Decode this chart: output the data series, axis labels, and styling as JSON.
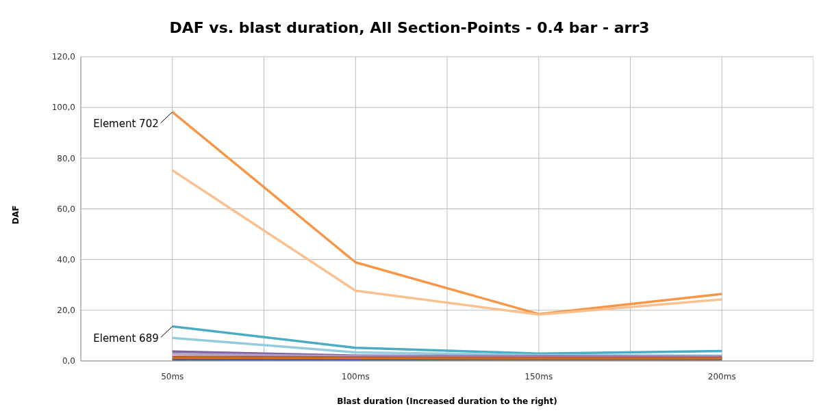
{
  "chart_data": {
    "type": "line",
    "title": "DAF vs. blast duration, All Section-Points - 0.4 bar - arr3",
    "xlabel": "Blast duration (Increased duration to the right)",
    "ylabel": "DAF",
    "categories": [
      "50ms",
      "100ms",
      "150ms",
      "200ms"
    ],
    "series": [
      {
        "color": "#f79646",
        "values": [
          98.2,
          38.9,
          18.5,
          26.4
        ]
      },
      {
        "color": "#fac090",
        "values": [
          75.2,
          27.7,
          18.3,
          24.3
        ]
      },
      {
        "color": "#4bacc6",
        "values": [
          13.6,
          5.2,
          2.9,
          3.9
        ]
      },
      {
        "color": "#93cddd",
        "values": [
          9.1,
          3.4,
          2.3,
          2.1
        ]
      },
      {
        "color": "#8064a2",
        "values": [
          3.7,
          2.1,
          1.8,
          1.6
        ]
      },
      {
        "color": "#b3a2c7",
        "values": [
          2.8,
          1.8,
          1.5,
          1.4
        ]
      },
      {
        "color": "#1f497d",
        "values": [
          0.6,
          0.6,
          0.6,
          0.6
        ]
      },
      {
        "color": "#c0504d",
        "values": [
          1.6,
          1.4,
          1.3,
          1.3
        ]
      },
      {
        "color": "#c0712d",
        "values": [
          1.1,
          1.0,
          0.9,
          0.9
        ]
      }
    ],
    "ylim": [
      0,
      120
    ],
    "yticks": [
      {
        "value": 0,
        "label": "0,0"
      },
      {
        "value": 20,
        "label": "20,0"
      },
      {
        "value": 40,
        "label": "40,0"
      },
      {
        "value": 60,
        "label": "60,0"
      },
      {
        "value": 80,
        "label": "80,0"
      },
      {
        "value": 100,
        "label": "100,0"
      },
      {
        "value": 120,
        "label": "120,0"
      }
    ],
    "grid": true,
    "legend": false,
    "marker": "none",
    "line_style": "solid",
    "annotations": [
      {
        "text": "Element 702",
        "x": "50ms",
        "y": 98.2
      },
      {
        "text": "Element 689",
        "x": "50ms",
        "y": 13.6
      }
    ]
  }
}
